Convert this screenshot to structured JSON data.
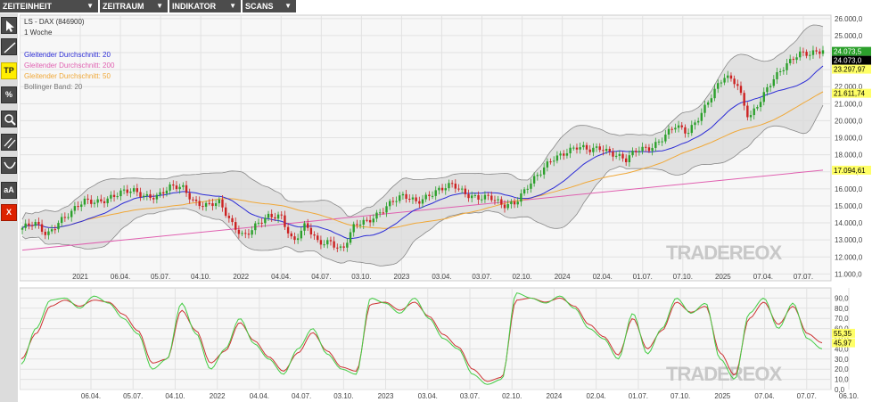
{
  "menu": {
    "items": [
      {
        "label": "ZEITEINHEIT",
        "arrow": "▼"
      },
      {
        "label": "ZEITRAUM",
        "arrow": "▼"
      },
      {
        "label": "INDIKATOR",
        "arrow": "▼"
      },
      {
        "label": "SCANS",
        "arrow": "▼"
      }
    ]
  },
  "toolbar": {
    "tools": [
      {
        "name": "cursor-tool",
        "icon": "cursor-icon",
        "label": ""
      },
      {
        "name": "trendline-tool",
        "icon": "line-icon",
        "label": ""
      },
      {
        "name": "tp-tool",
        "icon": "tp-icon",
        "label": "TP"
      },
      {
        "name": "percent-tool",
        "icon": "percent-icon",
        "label": "%"
      },
      {
        "name": "zoom-tool",
        "icon": "magnifier-icon",
        "label": ""
      },
      {
        "name": "channel-tool",
        "icon": "parallel-lines-icon",
        "label": ""
      },
      {
        "name": "arc-tool",
        "icon": "arc-icon",
        "label": ""
      },
      {
        "name": "text-tool",
        "icon": "text-size-icon",
        "label": "aA"
      },
      {
        "name": "delete-tool",
        "icon": "delete-x-icon",
        "label": "X"
      }
    ]
  },
  "colors": {
    "candle_up": "#2ca02c",
    "candle_down": "#cc2222",
    "sma20": "#2b2bd6",
    "sma200": "#e060b0",
    "sma50": "#f0a838",
    "bollinger": "#888888",
    "bollinger_fill": "#d9d9d9",
    "stoch_k": "#44cc44",
    "stoch_d": "#cc3333"
  },
  "chart_data": [
    {
      "type": "candlestick",
      "title": "LS - DAX (846900)",
      "subtitle": "1 Woche",
      "legend": [
        {
          "label": "Gleitender Durchschnitt: 20",
          "color": "#2b2bd6"
        },
        {
          "label": "Gleitender Durchschnitt: 200",
          "color": "#e060b0"
        },
        {
          "label": "Gleitender Durchschnitt: 50",
          "color": "#f0a838"
        },
        {
          "label": "Bollinger Band: 20",
          "color": "#777777"
        }
      ],
      "legend_position": "top-left",
      "x_ticks": [
        "2021",
        "06.04.",
        "05.07.",
        "04.10.",
        "2022",
        "04.04.",
        "04.07.",
        "03.10.",
        "2023",
        "03.04.",
        "03.07.",
        "02.10.",
        "2024",
        "02.04.",
        "01.07.",
        "07.10.",
        "2025",
        "07.04.",
        "07.07."
      ],
      "y_ticks": [
        "26.000,0",
        "25.000,0",
        "24.000,0",
        "23.000,0",
        "22.000,0",
        "21.000,0",
        "20.000,0",
        "19.000,0",
        "18.000,0",
        "17.000,0",
        "16.000,0",
        "15.000,0",
        "14.000,0",
        "13.000,0",
        "12.000,0",
        "11.000,0"
      ],
      "ylim": [
        10600,
        26200
      ],
      "grid": true,
      "price_tags": [
        {
          "label": "24.073,5",
          "value": 24073.5,
          "bg": "#2ca02c",
          "fg": "#ffffff"
        },
        {
          "label": "24.073,0",
          "value": 24073.0,
          "bg": "#000000",
          "fg": "#ffffff"
        },
        {
          "label": "23.297,97",
          "value": 23297.97,
          "bg": "#ffff66",
          "fg": "#000000"
        },
        {
          "label": "21.611,74",
          "value": 21611.74,
          "bg": "#ffff66",
          "fg": "#000000"
        },
        {
          "label": "17.094,61",
          "value": 17094.61,
          "bg": "#ffff66",
          "fg": "#000000"
        }
      ],
      "close_anchors": [
        13700,
        13900,
        13300,
        14200,
        14600,
        15200,
        15300,
        15500,
        15700,
        15850,
        15650,
        15600,
        16000,
        16100,
        15300,
        15000,
        15100,
        14000,
        13300,
        13800,
        14300,
        14500,
        12900,
        13800,
        12800,
        13000,
        12400,
        13800,
        14100,
        14700,
        15200,
        15500,
        15300,
        15700,
        15900,
        16200,
        15800,
        15500,
        15400,
        15000,
        15300,
        16100,
        16800,
        17800,
        18200,
        18400,
        18200,
        18500,
        18100,
        17600,
        18300,
        18500,
        19000,
        19600,
        19300,
        20400,
        21500,
        22500,
        22300,
        20200,
        21200,
        22400,
        23400,
        24000,
        23800,
        24100
      ],
      "sma200_range": [
        12400,
        17094.61
      ],
      "watermark": "TRADEREOX"
    },
    {
      "type": "line",
      "title": "",
      "y_ticks": [
        "90,0",
        "80,0",
        "70,0",
        "60,0",
        "50,0",
        "40,0",
        "30,0",
        "20,0",
        "10,0",
        "0,0"
      ],
      "ylim": [
        0,
        100
      ],
      "x_ticks": [
        "06.04.",
        "05.07.",
        "04.10.",
        "2022",
        "04.04.",
        "04.07.",
        "03.10.",
        "2023",
        "03.04.",
        "03.07.",
        "02.10.",
        "2024",
        "02.04.",
        "01.07.",
        "07.10.",
        "2025",
        "07.04.",
        "07.07.",
        "06.10."
      ],
      "series": [
        {
          "name": "",
          "color": "#44cc44",
          "values": [
            25,
            60,
            88,
            90,
            80,
            92,
            85,
            70,
            55,
            20,
            30,
            85,
            55,
            20,
            40,
            70,
            45,
            30,
            15,
            40,
            60,
            35,
            20,
            15,
            90,
            85,
            75,
            90,
            70,
            50,
            40,
            15,
            5,
            10,
            95,
            90,
            85,
            92,
            80,
            60,
            50,
            30,
            75,
            35,
            60,
            90,
            75,
            85,
            30,
            10,
            75,
            90,
            60,
            85,
            50,
            40
          ]
        },
        {
          "name": "",
          "color": "#cc3333",
          "values": [
            30,
            55,
            82,
            88,
            82,
            88,
            86,
            74,
            58,
            26,
            30,
            78,
            58,
            26,
            38,
            66,
            48,
            32,
            18,
            36,
            56,
            38,
            22,
            18,
            84,
            86,
            78,
            86,
            72,
            54,
            42,
            20,
            8,
            12,
            88,
            90,
            86,
            90,
            82,
            64,
            52,
            34,
            70,
            40,
            58,
            86,
            76,
            82,
            36,
            14,
            70,
            86,
            64,
            82,
            55,
            46
          ]
        }
      ],
      "value_tags": [
        {
          "label": "55,35",
          "value": 55.35,
          "bg": "#ffff66",
          "fg": "#000000"
        },
        {
          "label": "45,97",
          "value": 45.97,
          "bg": "#ffff66",
          "fg": "#000000"
        }
      ],
      "watermark": "TRADEREOX"
    }
  ]
}
